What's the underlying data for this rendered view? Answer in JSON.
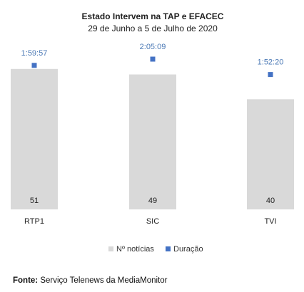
{
  "chart_data": {
    "type": "bar",
    "title": "Estado Intervem na TAP e EFACEC",
    "subtitle": "29 de Junho a 5 de Julho de 2020",
    "categories": [
      "RTP1",
      "SIC",
      "TVI"
    ],
    "series": [
      {
        "name": "Nº notícias",
        "type": "bar",
        "values": [
          51,
          49,
          40
        ],
        "labels": [
          "51",
          "49",
          "40"
        ],
        "color": "#d9d9d9"
      },
      {
        "name": "Duração",
        "type": "scatter",
        "values": [
          "1:59:57",
          "2:05:09",
          "1:52:20"
        ],
        "labels": [
          "1:59:57",
          "2:05:09",
          "1:52:20"
        ],
        "color": "#4472c4",
        "label_color": "#4a78b5"
      }
    ],
    "ylim": [
      0,
      60
    ],
    "grid": false,
    "legend_position": "bottom"
  },
  "source": {
    "label": "Fonte:",
    "text": " Serviço Telenews da MediaMonitor"
  }
}
